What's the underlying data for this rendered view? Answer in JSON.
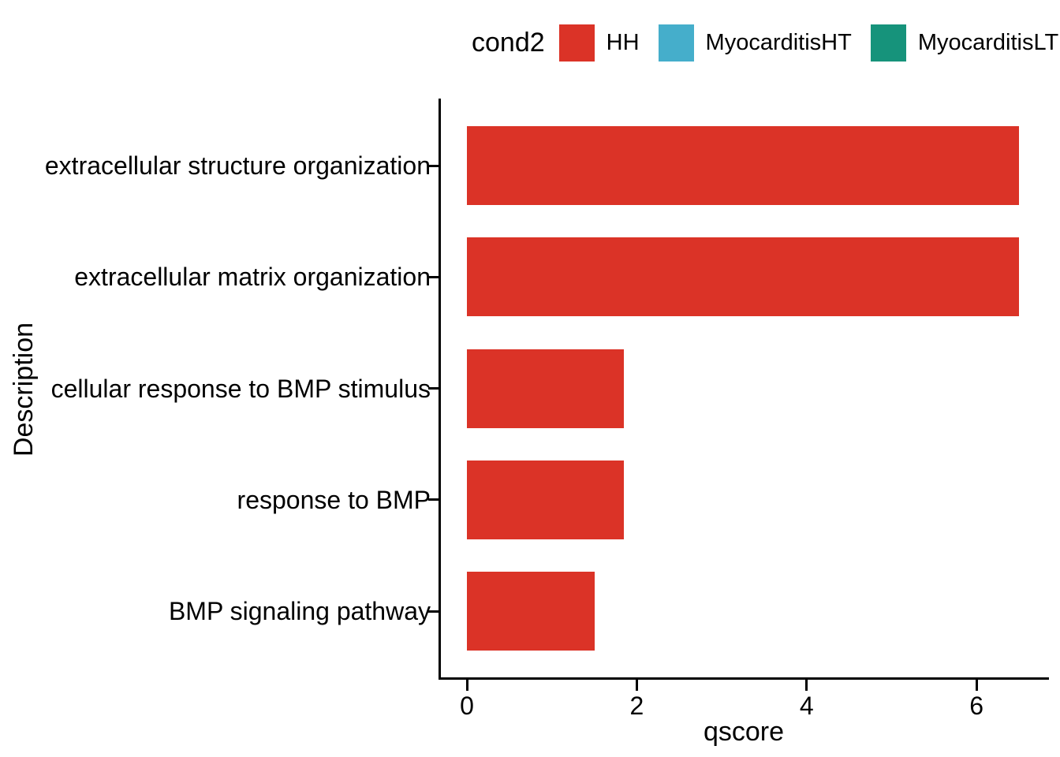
{
  "legend": {
    "title": "cond2",
    "items": [
      {
        "label": "HH",
        "color": "#DB3327"
      },
      {
        "label": "MyocarditisHT",
        "color": "#45AECB"
      },
      {
        "label": "MyocarditisLT",
        "color": "#16937B"
      }
    ]
  },
  "chart_data": {
    "type": "bar",
    "orientation": "horizontal",
    "title": "",
    "legend_title": "cond2",
    "legend_position": "top",
    "categories": [
      "extracellular structure organization",
      "extracellular matrix organization",
      "cellular response to BMP stimulus",
      "response to BMP",
      "BMP signaling pathway"
    ],
    "series": [
      {
        "name": "HH",
        "color": "#DB3327",
        "values": [
          6.5,
          6.5,
          1.85,
          1.85,
          1.5
        ]
      }
    ],
    "xlabel": "qscore",
    "ylabel": "Description",
    "xlim": [
      0,
      6.84
    ],
    "xticks": [
      0,
      2,
      4,
      6
    ],
    "grid": false,
    "bar_width_fraction": 0.7
  }
}
